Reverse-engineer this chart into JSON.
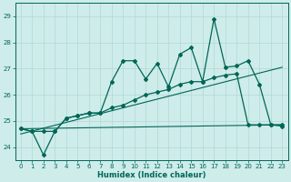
{
  "xlabel": "Humidex (Indice chaleur)",
  "background_color": "#ceecea",
  "grid_color": "#b0d8d5",
  "line_color": "#006655",
  "xlim": [
    -0.5,
    23.5
  ],
  "ylim": [
    23.5,
    29.5
  ],
  "yticks": [
    24,
    25,
    26,
    27,
    28,
    29
  ],
  "xticks": [
    0,
    1,
    2,
    3,
    4,
    5,
    6,
    7,
    8,
    9,
    10,
    11,
    12,
    13,
    14,
    15,
    16,
    17,
    18,
    19,
    20,
    21,
    22,
    23
  ],
  "x": [
    0,
    1,
    2,
    3,
    4,
    5,
    6,
    7,
    8,
    9,
    10,
    11,
    12,
    13,
    14,
    15,
    16,
    17,
    18,
    19,
    20,
    21,
    22,
    23
  ],
  "line1": [
    24.7,
    24.6,
    23.7,
    24.6,
    25.1,
    25.2,
    25.3,
    25.3,
    26.5,
    27.3,
    27.3,
    26.6,
    27.2,
    26.3,
    27.55,
    27.8,
    26.5,
    28.9,
    27.05,
    27.1,
    27.3,
    26.4,
    24.85,
    24.8
  ],
  "line2": [
    24.7,
    24.6,
    24.6,
    24.6,
    25.1,
    25.2,
    25.3,
    25.3,
    25.5,
    25.6,
    25.8,
    26.0,
    26.1,
    26.2,
    26.4,
    26.5,
    26.5,
    26.65,
    26.75,
    26.8,
    24.85,
    24.85,
    24.85,
    24.85
  ],
  "line3_x": [
    0,
    23
  ],
  "line3_y": [
    24.7,
    24.85
  ],
  "line4_x": [
    0,
    23
  ],
  "line4_y": [
    24.5,
    27.05
  ]
}
